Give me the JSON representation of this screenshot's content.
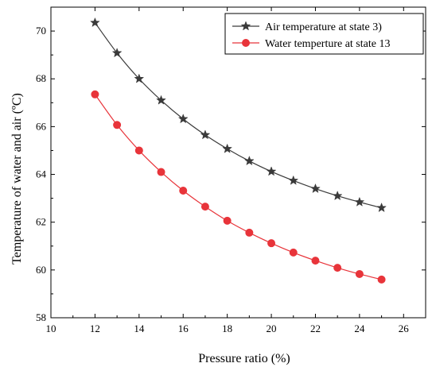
{
  "chart_data": {
    "type": "line",
    "title": "",
    "xlabel": "Pressure ratio (%)",
    "ylabel": "Temperature of water and air (ºC)",
    "xlim": [
      10,
      27
    ],
    "ylim": [
      58,
      71
    ],
    "xticks": [
      10,
      12,
      14,
      16,
      18,
      20,
      22,
      24,
      26
    ],
    "yticks": [
      58,
      60,
      62,
      64,
      66,
      68,
      70
    ],
    "grid": false,
    "legend_position": "top-right",
    "x": [
      12,
      13,
      14,
      15,
      16,
      17,
      18,
      19,
      20,
      21,
      22,
      23,
      24,
      25
    ],
    "series": [
      {
        "name": "Air temperature at state 3)",
        "color": "#3a3a3a",
        "marker": "star",
        "values": [
          70.35,
          69.08,
          68.0,
          67.1,
          66.32,
          65.65,
          65.07,
          64.56,
          64.12,
          63.74,
          63.4,
          63.1,
          62.84,
          62.6
        ]
      },
      {
        "name": "Water temperture at state 13",
        "color": "#e8343a",
        "marker": "circle",
        "values": [
          67.35,
          66.07,
          65.0,
          64.1,
          63.32,
          62.65,
          62.06,
          61.56,
          61.12,
          60.73,
          60.39,
          60.09,
          59.83,
          59.6
        ]
      }
    ]
  }
}
